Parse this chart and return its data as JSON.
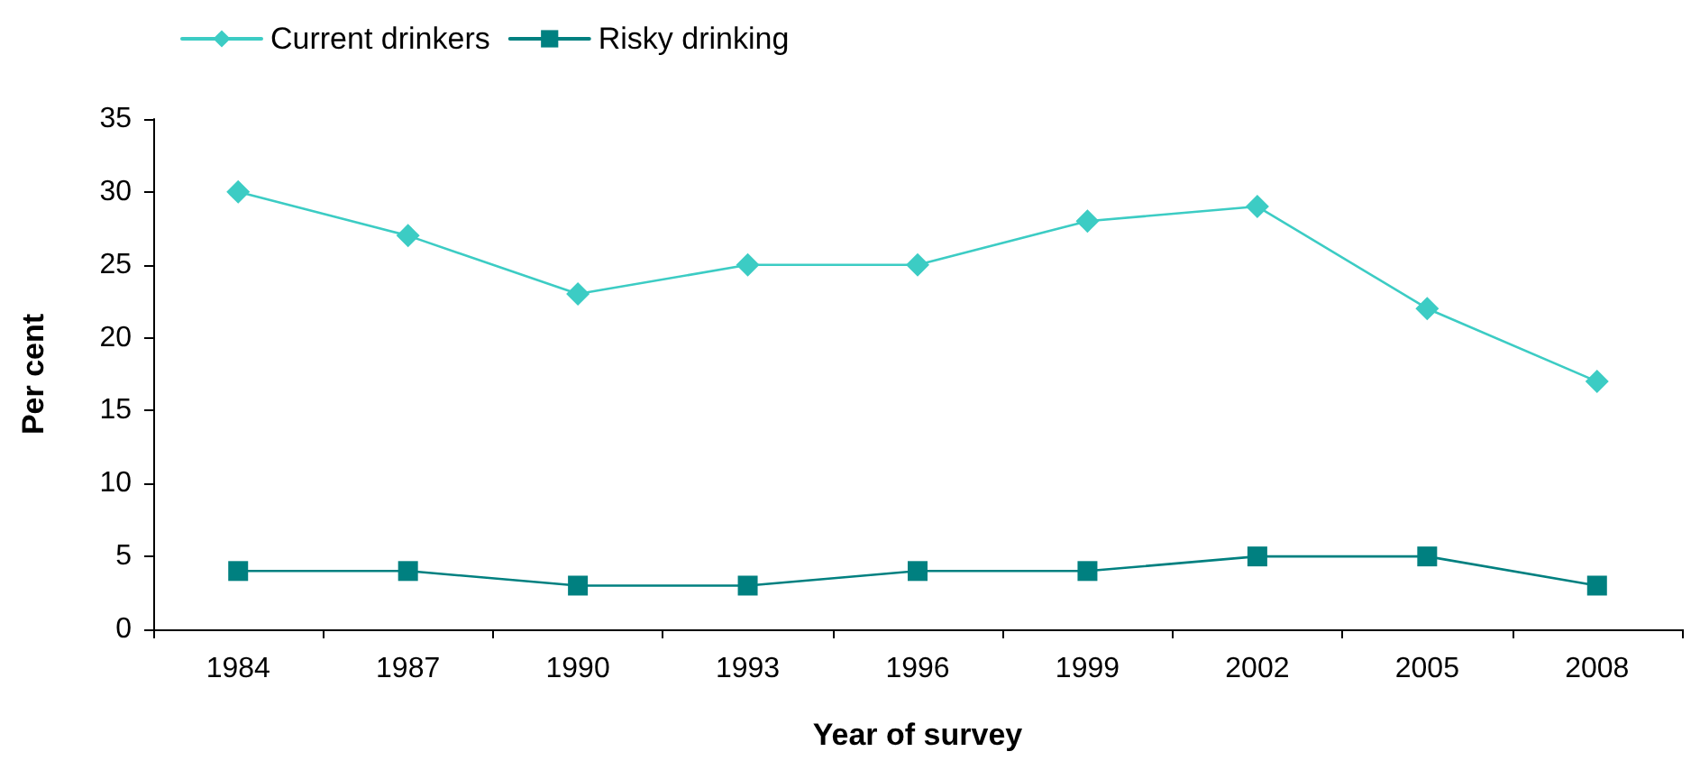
{
  "chart_data": {
    "type": "line",
    "xlabel": "Year of survey",
    "ylabel": "Per cent",
    "categories": [
      "1984",
      "1987",
      "1990",
      "1993",
      "1996",
      "1999",
      "2002",
      "2005",
      "2008"
    ],
    "series": [
      {
        "name": "Current drinkers",
        "color": "#3cccc4",
        "marker": "diamond",
        "values": [
          30,
          27,
          23,
          25,
          25,
          28,
          29,
          22,
          17
        ]
      },
      {
        "name": "Risky drinking",
        "color": "#008080",
        "marker": "square",
        "values": [
          4,
          4,
          3,
          3,
          4,
          4,
          5,
          5,
          3
        ]
      }
    ],
    "ylim": [
      0,
      35
    ],
    "yticks": [
      0,
      5,
      10,
      15,
      20,
      25,
      30,
      35
    ],
    "grid": false,
    "legend": "top left",
    "line_style": "solid"
  }
}
